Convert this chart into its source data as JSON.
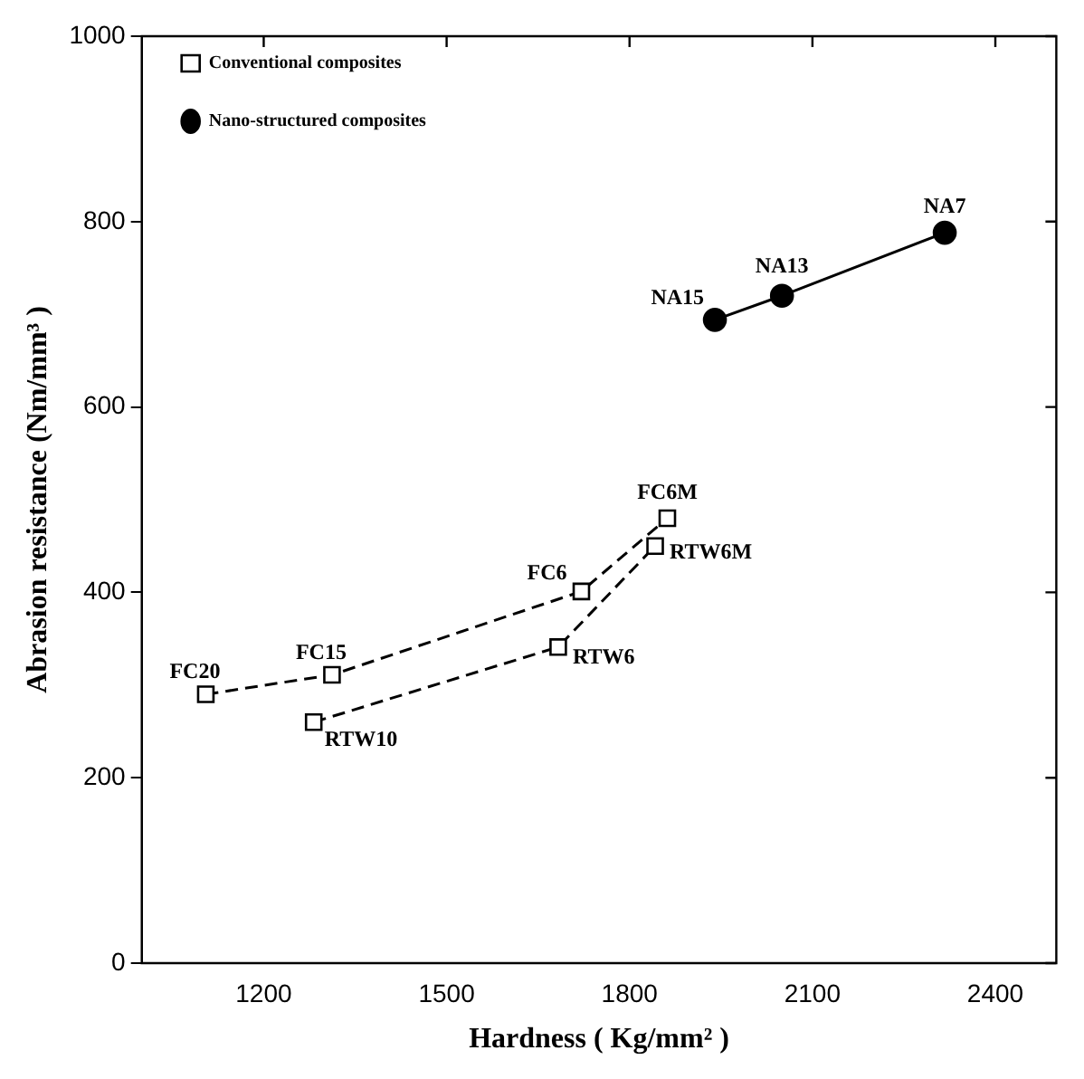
{
  "chart_data": {
    "type": "line",
    "xlabel": "Hardness ( Kg/mm² )",
    "ylabel": "Abrasion resistance (Nm/mm³ )",
    "xlim": [
      1000,
      2500
    ],
    "xticks": [
      1200,
      1500,
      1800,
      2100,
      2400
    ],
    "ylim": [
      0,
      1000
    ],
    "yticks": [
      0,
      200,
      400,
      600,
      800,
      1000
    ],
    "grid": false,
    "legend": "top left",
    "series": [
      {
        "name": "Conventional composites",
        "color": "#000000",
        "marker": "square",
        "line_style": "dashed",
        "x": [
          1105,
          1312,
          1721,
          1862
        ],
        "values": [
          290,
          311,
          401,
          480
        ]
      },
      {
        "color": "#000000",
        "marker": "square",
        "line_style": "dashed",
        "x": [
          1282,
          1683,
          1842
        ],
        "values": [
          260,
          341,
          450
        ]
      },
      {
        "name": "Nano-structured composites",
        "color": "#000000",
        "marker": "circle",
        "line_style": "solid",
        "x": [
          1940,
          2050,
          2317
        ],
        "values": [
          694,
          720,
          788
        ]
      }
    ],
    "annotations": [
      {
        "text": "FC20",
        "x": 1105,
        "y": 290
      },
      {
        "text": "FC15",
        "x": 1312,
        "y": 311
      },
      {
        "text": "FC6",
        "x": 1721,
        "y": 401
      },
      {
        "text": "FC6M",
        "x": 1862,
        "y": 480
      },
      {
        "text": "RTW10",
        "x": 1282,
        "y": 260
      },
      {
        "text": "RTW6",
        "x": 1683,
        "y": 341
      },
      {
        "text": "RTW6M",
        "x": 1842,
        "y": 450
      },
      {
        "text": "NA15",
        "x": 1940,
        "y": 694
      },
      {
        "text": "NA13",
        "x": 2050,
        "y": 720
      },
      {
        "text": "NA7",
        "x": 2317,
        "y": 788
      }
    ]
  }
}
